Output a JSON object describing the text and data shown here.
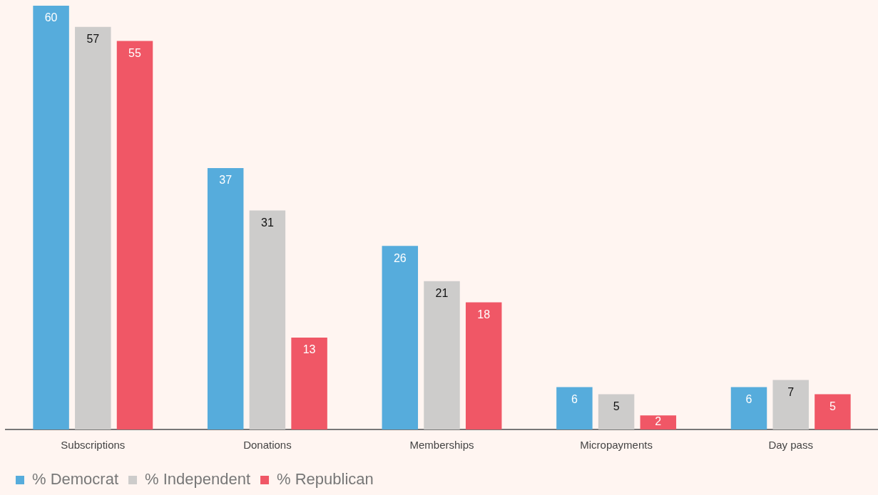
{
  "chart_data": {
    "type": "bar",
    "categories": [
      "Subscriptions",
      "Donations",
      "Memberships",
      "Micropayments",
      "Day pass"
    ],
    "series": [
      {
        "name": "% Democrat",
        "color": "#56acdc",
        "values": [
          60,
          37,
          26,
          6,
          6
        ]
      },
      {
        "name": "% Independent",
        "color": "#cdcccb",
        "values": [
          57,
          31,
          21,
          5,
          7
        ]
      },
      {
        "name": "% Republican",
        "color": "#f05766",
        "values": [
          55,
          13,
          18,
          2,
          5
        ]
      }
    ],
    "data_labels": true,
    "legend": "bottom left",
    "grid": false
  }
}
